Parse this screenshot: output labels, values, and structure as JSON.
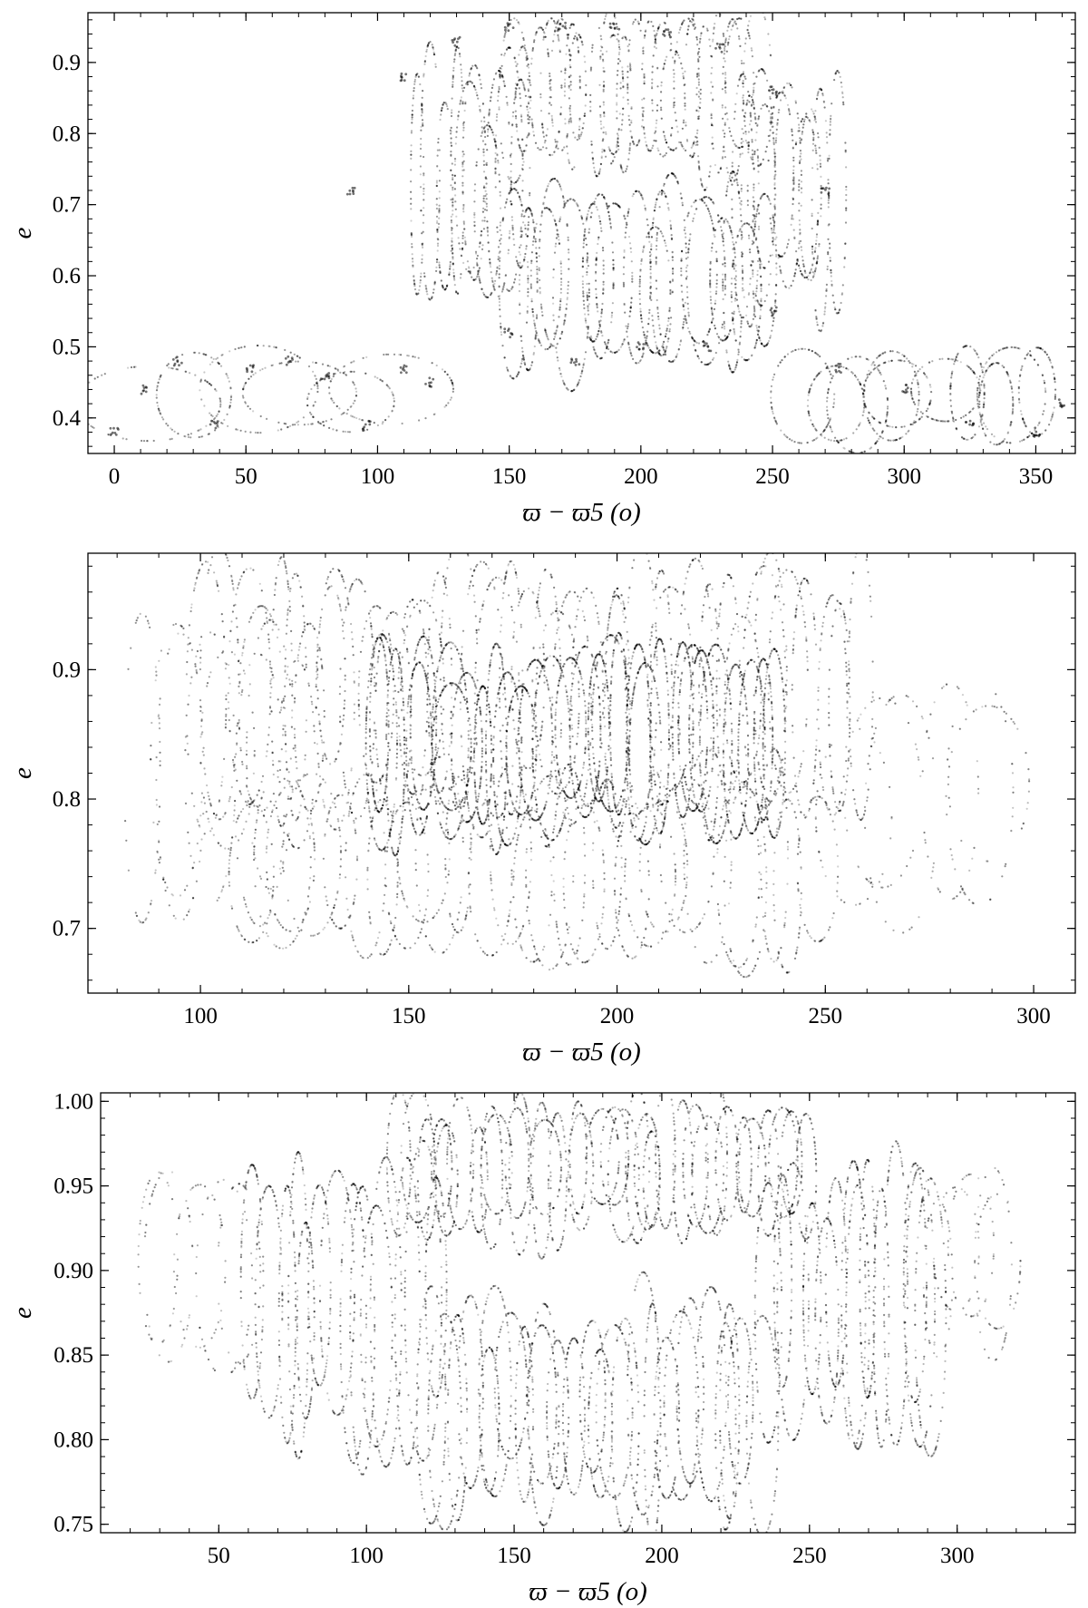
{
  "chart_data": [
    {
      "type": "scatter",
      "title": "",
      "xlabel": "ϖ − ϖ5 (o)",
      "ylabel": "e",
      "xlim": [
        -10,
        365
      ],
      "ylim": [
        0.35,
        0.97
      ],
      "xticks": [
        0,
        50,
        100,
        150,
        200,
        250,
        300,
        350
      ],
      "xtick_labels": [
        "0",
        "50",
        "100",
        "150",
        "200",
        "250",
        "300",
        "350"
      ],
      "yticks": [
        0.4,
        0.5,
        0.6,
        0.7,
        0.8,
        0.9
      ],
      "ytick_labels": [
        "0.4",
        "0.5",
        "0.6",
        "0.7",
        "0.8",
        "0.9"
      ],
      "grid": false,
      "marker_color": "#000000",
      "series": [
        {
          "description_points": "low-e looping trajectory, left",
          "x": [
            0,
            12,
            24,
            38,
            52,
            66,
            80,
            96,
            110,
            120
          ],
          "y": [
            0.38,
            0.44,
            0.48,
            0.39,
            0.47,
            0.48,
            0.46,
            0.39,
            0.47,
            0.45
          ]
        },
        {
          "x": [
            90,
            110,
            130,
            150,
            170,
            190,
            210,
            230,
            250,
            270
          ],
          "y": [
            0.72,
            0.88,
            0.93,
            0.95,
            0.95,
            0.95,
            0.94,
            0.92,
            0.86,
            0.72
          ]
        },
        {
          "x": [
            150,
            175,
            200,
            225,
            250,
            275,
            300,
            325,
            350,
            360
          ],
          "y": [
            0.52,
            0.48,
            0.5,
            0.5,
            0.55,
            0.47,
            0.44,
            0.39,
            0.38,
            0.42
          ]
        }
      ],
      "bands": [
        {
          "x": [
            115,
            155
          ],
          "cy": 0.72,
          "ry": 0.16,
          "loops": 10,
          "density": 1.4
        },
        {
          "x": [
            150,
            245
          ],
          "cy": 0.855,
          "ry": 0.1,
          "loops": 22,
          "density": 0.8
        },
        {
          "x": [
            235,
            275
          ],
          "cy": 0.72,
          "ry": 0.16,
          "loops": 10,
          "density": 1.2
        },
        {
          "x": [
            150,
            250
          ],
          "cy": 0.595,
          "ry": 0.12,
          "loops": 18,
          "density": 1.5
        },
        {
          "x": [
            255,
            360
          ],
          "cy": 0.43,
          "ry": 0.06,
          "loops": 10,
          "density": 1.3
        },
        {
          "x": [
            0,
            120
          ],
          "cy": 0.43,
          "ry": 0.055,
          "loops": 6,
          "density": 1.1
        }
      ]
    },
    {
      "type": "scatter",
      "title": "",
      "xlabel": "ϖ − ϖ5 (o)",
      "ylabel": "e",
      "xlim": [
        73,
        310
      ],
      "ylim": [
        0.65,
        0.99
      ],
      "xticks": [
        100,
        150,
        200,
        250,
        300
      ],
      "xtick_labels": [
        "100",
        "150",
        "200",
        "250",
        "300"
      ],
      "yticks": [
        0.7,
        0.8,
        0.9
      ],
      "ytick_labels": [
        "0.7",
        "0.8",
        "0.9"
      ],
      "grid": false,
      "marker_color": "#000000",
      "bands": [
        {
          "x": [
            85,
            125
          ],
          "cy": 0.82,
          "ry": 0.1,
          "loops": 8,
          "density": 0.6
        },
        {
          "x": [
            100,
            260
          ],
          "cy": 0.88,
          "ry": 0.09,
          "loops": 40,
          "density": 1.0
        },
        {
          "x": [
            140,
            240
          ],
          "cy": 0.845,
          "ry": 0.07,
          "loops": 30,
          "density": 2.2
        },
        {
          "x": [
            110,
            250
          ],
          "cy": 0.745,
          "ry": 0.07,
          "loops": 28,
          "density": 0.8
        },
        {
          "x": [
            250,
            295
          ],
          "cy": 0.8,
          "ry": 0.08,
          "loops": 6,
          "density": 0.5
        }
      ]
    },
    {
      "type": "scatter",
      "title": "",
      "xlabel": "ϖ − ϖ5 (o)",
      "ylabel": "e",
      "xlim": [
        10,
        340
      ],
      "ylim": [
        0.745,
        1.005
      ],
      "xticks": [
        50,
        100,
        150,
        200,
        250,
        300
      ],
      "xtick_labels": [
        "50",
        "100",
        "150",
        "200",
        "250",
        "300"
      ],
      "yticks": [
        0.75,
        0.8,
        0.85,
        0.9,
        0.95,
        1.0
      ],
      "ytick_labels": [
        "0.75",
        "0.80",
        "0.85",
        "0.90",
        "0.95",
        "1.00"
      ],
      "grid": false,
      "marker_color": "#000000",
      "bands": [
        {
          "x": [
            25,
            60
          ],
          "cy": 0.905,
          "ry": 0.05,
          "loops": 5,
          "density": 0.5
        },
        {
          "x": [
            60,
            125
          ],
          "cy": 0.88,
          "ry": 0.08,
          "loops": 14,
          "density": 1.5
        },
        {
          "x": [
            110,
            250
          ],
          "cy": 0.96,
          "ry": 0.04,
          "loops": 34,
          "density": 1.0
        },
        {
          "x": [
            120,
            235
          ],
          "cy": 0.82,
          "ry": 0.06,
          "loops": 26,
          "density": 1.3
        },
        {
          "x": [
            235,
            295
          ],
          "cy": 0.88,
          "ry": 0.08,
          "loops": 14,
          "density": 1.5
        },
        {
          "x": [
            290,
            318
          ],
          "cy": 0.905,
          "ry": 0.05,
          "loops": 5,
          "density": 0.5
        }
      ]
    }
  ]
}
